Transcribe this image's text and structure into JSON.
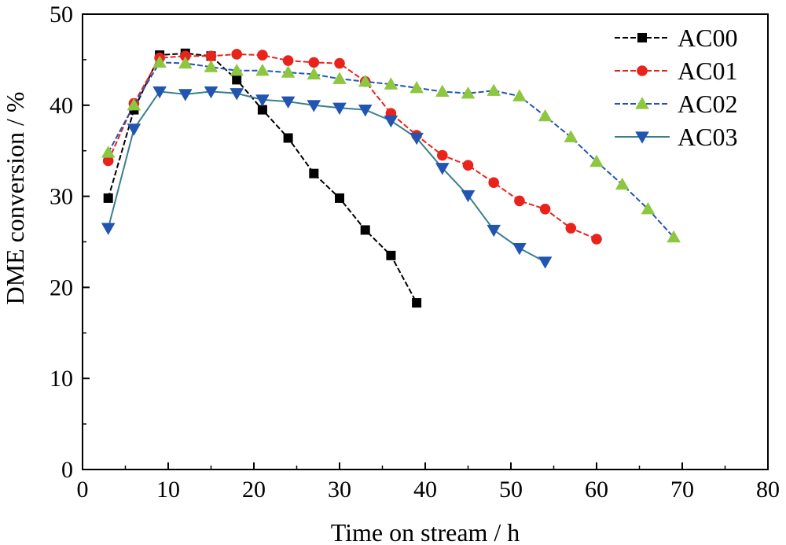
{
  "chart_data": {
    "type": "line",
    "title": "",
    "xlabel": "Time on stream / h",
    "ylabel": "DME conversion / %",
    "xlim": [
      0,
      80
    ],
    "ylim": [
      0,
      50
    ],
    "xticks": [
      0,
      10,
      20,
      30,
      40,
      50,
      60,
      70,
      80
    ],
    "yticks": [
      0,
      10,
      20,
      30,
      40,
      50
    ],
    "grid": false,
    "legend_position": "top-right",
    "series": [
      {
        "name": "AC00",
        "color": "#000000",
        "marker": "square",
        "dash": "dashed",
        "x": [
          3,
          6,
          9,
          12,
          15,
          18,
          21,
          24,
          27,
          30,
          33,
          36,
          39
        ],
        "y": [
          29.8,
          39.5,
          45.5,
          45.7,
          45.4,
          42.8,
          39.5,
          36.4,
          32.5,
          29.8,
          26.3,
          23.5,
          18.3
        ]
      },
      {
        "name": "AC01",
        "color": "#e8231b",
        "marker": "circle",
        "dash": "dashed",
        "x": [
          3,
          6,
          9,
          12,
          15,
          18,
          21,
          24,
          27,
          30,
          33,
          36,
          39,
          42,
          45,
          48,
          51,
          54,
          57,
          60
        ],
        "y": [
          33.9,
          40.2,
          45.2,
          45.4,
          45.4,
          45.6,
          45.5,
          44.9,
          44.7,
          44.6,
          42.6,
          39.1,
          36.7,
          34.5,
          33.4,
          31.5,
          29.5,
          28.6,
          26.5,
          25.3
        ]
      },
      {
        "name": "AC02",
        "color": "#2255b0",
        "marker": "triangle-up",
        "markerColor": "#8dc63f",
        "dash": "dashed",
        "x": [
          3,
          6,
          9,
          12,
          15,
          18,
          21,
          24,
          27,
          30,
          33,
          36,
          39,
          42,
          45,
          48,
          51,
          54,
          57,
          60,
          63,
          66,
          69
        ],
        "y": [
          34.8,
          40.0,
          44.7,
          44.6,
          44.2,
          43.8,
          43.8,
          43.6,
          43.4,
          42.9,
          42.6,
          42.3,
          41.9,
          41.5,
          41.3,
          41.6,
          41.0,
          38.8,
          36.5,
          33.8,
          31.3,
          28.6,
          25.5
        ]
      },
      {
        "name": "AC03",
        "color": "#3a7f8c",
        "marker": "triangle-down",
        "markerColor": "#2255b0",
        "dash": "solid",
        "x": [
          3,
          6,
          9,
          12,
          15,
          18,
          21,
          24,
          27,
          30,
          33,
          36,
          39,
          42,
          45,
          48,
          51,
          54
        ],
        "y": [
          26.5,
          37.4,
          41.5,
          41.2,
          41.5,
          41.3,
          40.6,
          40.4,
          40.0,
          39.7,
          39.5,
          38.3,
          36.4,
          33.1,
          30.1,
          26.3,
          24.3,
          22.8
        ]
      }
    ]
  }
}
